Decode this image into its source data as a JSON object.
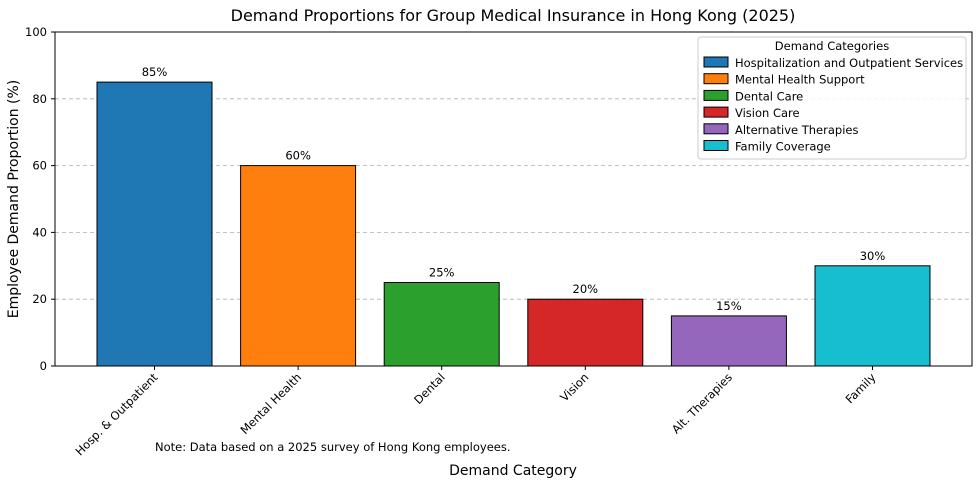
{
  "chart_data": {
    "type": "bar",
    "title": "Demand Proportions for Group Medical Insurance in Hong Kong (2025)",
    "xlabel": "Demand Category",
    "ylabel": "Employee Demand Proportion (%)",
    "ylim": [
      0,
      100
    ],
    "yticks": [
      0,
      20,
      40,
      60,
      80,
      100
    ],
    "grid": "y-dashed",
    "categories": [
      "Hosp. & Outpatient",
      "Mental Health",
      "Dental",
      "Vision",
      "Alt. Therapies",
      "Family"
    ],
    "values": [
      85,
      60,
      25,
      20,
      15,
      30
    ],
    "value_labels": [
      "85%",
      "60%",
      "25%",
      "20%",
      "15%",
      "30%"
    ],
    "colors": [
      "#1f77b4",
      "#ff7f0e",
      "#2ca02c",
      "#d62728",
      "#9467bd",
      "#17becf"
    ],
    "legend": {
      "title": "Demand Categories",
      "placement": "top-right",
      "entries": [
        "Hospitalization and Outpatient Services",
        "Mental Health Support",
        "Dental Care",
        "Vision Care",
        "Alternative Therapies",
        "Family Coverage"
      ]
    },
    "note": "Note: Data based on a 2025 survey of Hong Kong employees."
  }
}
